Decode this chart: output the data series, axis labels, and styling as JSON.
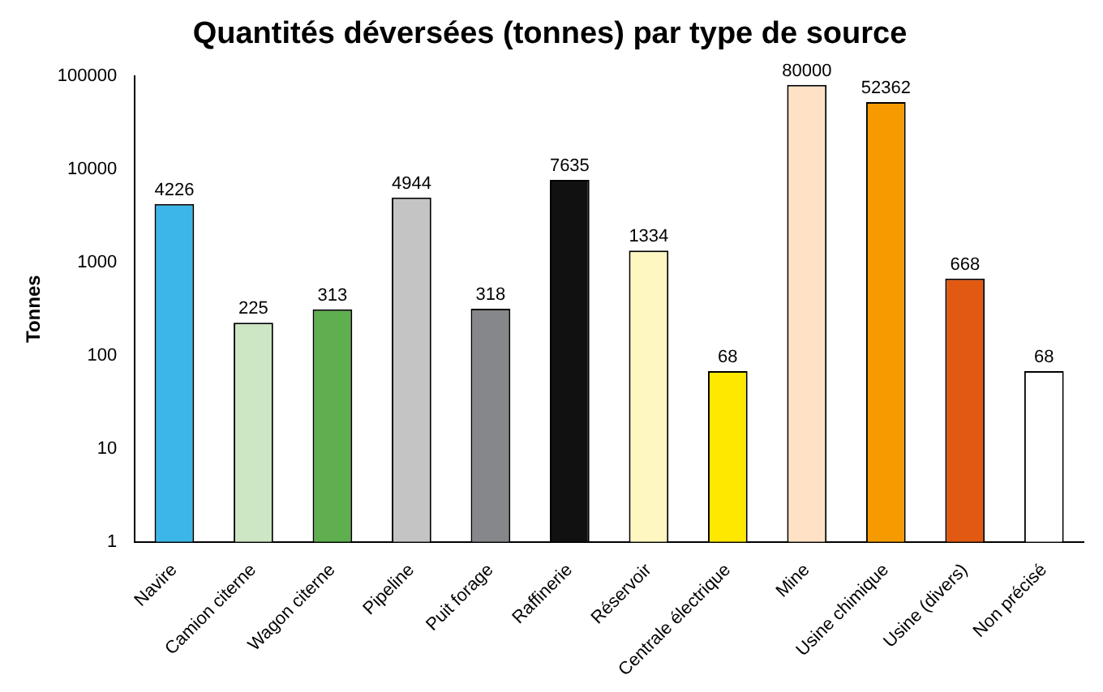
{
  "chart_data": {
    "type": "bar",
    "title": "Quantités déversées (tonnes) par type de source",
    "ylabel": "Tonnes",
    "categories": [
      "Navire",
      "Camion citerne",
      "Wagon citerne",
      "Pipeline",
      "Puit forage",
      "Raffinerie",
      "Réservoir",
      "Centrale électrique",
      "Mine",
      "Usine chimique",
      "Usine (divers)",
      "Non précisé"
    ],
    "values": [
      4226,
      225,
      313,
      4944,
      318,
      7635,
      1334,
      68,
      80000,
      52362,
      668,
      68
    ],
    "colors": [
      "#3cb6e8",
      "#cde6c4",
      "#5fae50",
      "#c4c4c4",
      "#86878a",
      "#111111",
      "#fff7c2",
      "#ffe800",
      "#ffe2c6",
      "#f59b00",
      "#e25a12",
      "#ffffff"
    ],
    "log": true,
    "ylim": [
      1,
      100000
    ],
    "yticks": [
      1,
      10,
      100,
      1000,
      10000,
      100000
    ],
    "grid": false,
    "legend": false,
    "data_labels": true
  }
}
